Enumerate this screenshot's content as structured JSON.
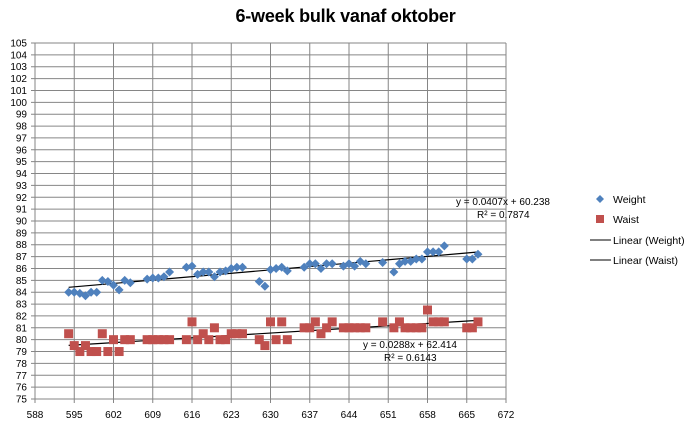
{
  "chart_data": {
    "type": "scatter",
    "title": "6-week bulk vanaf oktober",
    "xlabel": "",
    "ylabel": "",
    "xlim": [
      588,
      672
    ],
    "ylim": [
      75,
      105
    ],
    "x_ticks": [
      588,
      595,
      602,
      609,
      616,
      623,
      630,
      637,
      644,
      651,
      658,
      665,
      672
    ],
    "y_ticks": [
      75,
      76,
      77,
      78,
      79,
      80,
      81,
      82,
      83,
      84,
      85,
      86,
      87,
      88,
      89,
      90,
      91,
      92,
      93,
      94,
      95,
      96,
      97,
      98,
      99,
      100,
      101,
      102,
      103,
      104,
      105
    ],
    "grid": true,
    "legend_position": "right",
    "series": [
      {
        "name": "Weight",
        "marker": "diamond",
        "color": "#4F81BD",
        "points": [
          [
            594,
            84.0
          ],
          [
            595,
            84.0
          ],
          [
            596,
            83.9
          ],
          [
            597,
            83.7
          ],
          [
            598,
            84.0
          ],
          [
            599,
            84.0
          ],
          [
            600,
            85.0
          ],
          [
            601,
            84.9
          ],
          [
            602,
            84.6
          ],
          [
            603,
            84.2
          ],
          [
            604,
            85.0
          ],
          [
            605,
            84.8
          ],
          [
            608,
            85.1
          ],
          [
            609,
            85.2
          ],
          [
            610,
            85.2
          ],
          [
            611,
            85.3
          ],
          [
            612,
            85.7
          ],
          [
            615,
            86.1
          ],
          [
            616,
            86.2
          ],
          [
            617,
            85.5
          ],
          [
            618,
            85.7
          ],
          [
            619,
            85.7
          ],
          [
            620,
            85.3
          ],
          [
            621,
            85.7
          ],
          [
            622,
            85.8
          ],
          [
            623,
            86.0
          ],
          [
            624,
            86.1
          ],
          [
            625,
            86.1
          ],
          [
            628,
            84.9
          ],
          [
            629,
            84.5
          ],
          [
            630,
            85.9
          ],
          [
            631,
            86.0
          ],
          [
            632,
            86.1
          ],
          [
            633,
            85.8
          ],
          [
            636,
            86.1
          ],
          [
            637,
            86.4
          ],
          [
            638,
            86.4
          ],
          [
            639,
            86.0
          ],
          [
            640,
            86.4
          ],
          [
            641,
            86.4
          ],
          [
            643,
            86.2
          ],
          [
            644,
            86.4
          ],
          [
            645,
            86.2
          ],
          [
            646,
            86.6
          ],
          [
            647,
            86.4
          ],
          [
            650,
            86.5
          ],
          [
            652,
            85.7
          ],
          [
            653,
            86.4
          ],
          [
            654,
            86.6
          ],
          [
            655,
            86.6
          ],
          [
            656,
            86.8
          ],
          [
            657,
            86.8
          ],
          [
            658,
            87.4
          ],
          [
            659,
            87.4
          ],
          [
            660,
            87.4
          ],
          [
            661,
            87.9
          ],
          [
            665,
            86.8
          ],
          [
            666,
            86.8
          ],
          [
            667,
            87.2
          ]
        ],
        "trendline": {
          "name": "Linear (Weight)",
          "slope": 0.0407,
          "intercept": 60.238,
          "equation": "y = 0.0407x + 60.238",
          "r2": "R² = 0.7874"
        }
      },
      {
        "name": "Waist",
        "marker": "square",
        "color": "#C0504D",
        "points": [
          [
            594,
            80.5
          ],
          [
            595,
            79.5
          ],
          [
            596,
            79.0
          ],
          [
            597,
            79.5
          ],
          [
            598,
            79.0
          ],
          [
            599,
            79.0
          ],
          [
            600,
            80.5
          ],
          [
            601,
            79.0
          ],
          [
            602,
            80.0
          ],
          [
            603,
            79.0
          ],
          [
            604,
            80.0
          ],
          [
            605,
            80.0
          ],
          [
            608,
            80.0
          ],
          [
            609,
            80.0
          ],
          [
            610,
            80.0
          ],
          [
            611,
            80.0
          ],
          [
            612,
            80.0
          ],
          [
            615,
            80.0
          ],
          [
            616,
            81.5
          ],
          [
            617,
            80.0
          ],
          [
            618,
            80.5
          ],
          [
            619,
            80.0
          ],
          [
            620,
            81.0
          ],
          [
            621,
            80.0
          ],
          [
            622,
            80.0
          ],
          [
            623,
            80.5
          ],
          [
            624,
            80.5
          ],
          [
            625,
            80.5
          ],
          [
            628,
            80.0
          ],
          [
            629,
            79.5
          ],
          [
            630,
            81.5
          ],
          [
            631,
            80.0
          ],
          [
            632,
            81.5
          ],
          [
            633,
            80.0
          ],
          [
            636,
            81.0
          ],
          [
            637,
            81.0
          ],
          [
            638,
            81.5
          ],
          [
            639,
            80.5
          ],
          [
            640,
            81.0
          ],
          [
            641,
            81.5
          ],
          [
            643,
            81.0
          ],
          [
            644,
            81.0
          ],
          [
            645,
            81.0
          ],
          [
            646,
            81.0
          ],
          [
            647,
            81.0
          ],
          [
            650,
            81.5
          ],
          [
            652,
            81.0
          ],
          [
            653,
            81.5
          ],
          [
            654,
            81.0
          ],
          [
            655,
            81.0
          ],
          [
            656,
            81.0
          ],
          [
            657,
            81.0
          ],
          [
            658,
            82.5
          ],
          [
            659,
            81.5
          ],
          [
            660,
            81.5
          ],
          [
            661,
            81.5
          ],
          [
            665,
            81.0
          ],
          [
            666,
            81.0
          ],
          [
            667,
            81.5
          ]
        ],
        "trendline": {
          "name": "Linear (Waist)",
          "slope": 0.0288,
          "intercept": 62.414,
          "equation": "y = 0.0288x + 62.414",
          "r2": "R² = 0.6143"
        }
      }
    ],
    "legend": [
      "Weight",
      "Waist",
      "Linear (Weight)",
      "Linear (Waist)"
    ]
  },
  "colors": {
    "weight": "#4F81BD",
    "waist": "#C0504D",
    "grid": "#868686",
    "trendline": "#000000"
  }
}
